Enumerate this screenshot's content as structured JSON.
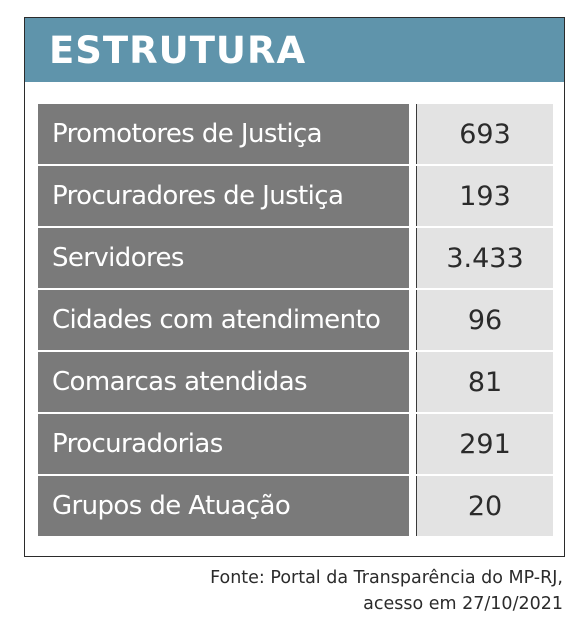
{
  "header": {
    "title": "ESTRUTURA",
    "color": "#5f94ab"
  },
  "rows": [
    {
      "label": "Promotores de Justiça",
      "value": "693"
    },
    {
      "label": "Procuradores de Justiça",
      "value": "193"
    },
    {
      "label": "Servidores",
      "value": "3.433"
    },
    {
      "label": "Cidades com atendimento",
      "value": "96"
    },
    {
      "label": "Comarcas atendidas",
      "value": "81"
    },
    {
      "label": "Procuradorias",
      "value": "291"
    },
    {
      "label": "Grupos de Atuação",
      "value": "20"
    }
  ],
  "source": {
    "line1": "Fonte: Portal da Transparência do MP-RJ,",
    "line2": "acesso em 27/10/2021"
  }
}
